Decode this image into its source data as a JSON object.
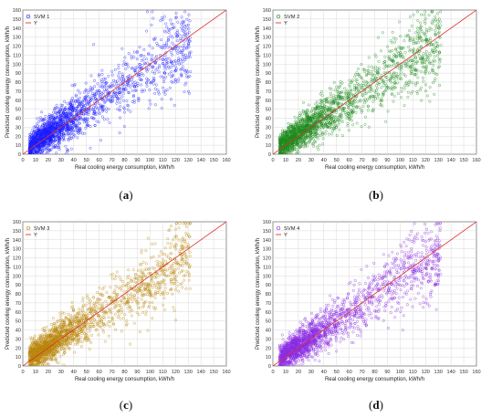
{
  "chart_data": [
    {
      "type": "scatter",
      "panel": "a",
      "caption_letter": "a",
      "xlabel": "Real cooling energy consumption, kWh/h",
      "ylabel": "Predicted cooling energy consumption, kWh/h",
      "xlim": [
        0,
        160
      ],
      "ylim": [
        0,
        160
      ],
      "xticks": [
        "0",
        "10",
        "20",
        "30",
        "40",
        "50",
        "60",
        "70",
        "80",
        "90",
        "100",
        "110",
        "120",
        "130",
        "140",
        "150",
        "160"
      ],
      "yticks": [
        "0",
        "10",
        "20",
        "30",
        "40",
        "50",
        "60",
        "70",
        "80",
        "90",
        "100",
        "110",
        "120",
        "130",
        "140",
        "150",
        "160"
      ],
      "grid": true,
      "legend_position": "top-left",
      "series": [
        {
          "name": "SVM 1",
          "kind": "scatter",
          "color": "#1a1aff",
          "n_points": 2000,
          "spread": 0.32
        },
        {
          "name": "Y",
          "kind": "line",
          "color": "#e03030",
          "x": [
            0,
            160
          ],
          "y": [
            0,
            160
          ]
        }
      ]
    },
    {
      "type": "scatter",
      "panel": "b",
      "caption_letter": "b",
      "xlabel": "Real cooling energy consumption, kWh/h",
      "ylabel": "Predicted cooling energy consumption, kWh/h",
      "xlim": [
        0,
        160
      ],
      "ylim": [
        0,
        160
      ],
      "xticks": [
        "0",
        "10",
        "20",
        "30",
        "40",
        "50",
        "60",
        "70",
        "80",
        "90",
        "100",
        "110",
        "120",
        "130",
        "140",
        "150",
        "160"
      ],
      "yticks": [
        "0",
        "10",
        "20",
        "30",
        "40",
        "50",
        "60",
        "70",
        "80",
        "90",
        "100",
        "110",
        "120",
        "130",
        "140",
        "150",
        "160"
      ],
      "grid": true,
      "legend_position": "top-left",
      "series": [
        {
          "name": "SVM 2",
          "kind": "scatter",
          "color": "#1c8a1c",
          "n_points": 2000,
          "spread": 0.3
        },
        {
          "name": "Y",
          "kind": "line",
          "color": "#e03030",
          "x": [
            0,
            160
          ],
          "y": [
            0,
            160
          ]
        }
      ]
    },
    {
      "type": "scatter",
      "panel": "c",
      "caption_letter": "c",
      "xlabel": "Real cooling energy consumption, kWh/h",
      "ylabel": "Predicted cooling energy consumption, kWh/h",
      "xlim": [
        0,
        160
      ],
      "ylim": [
        0,
        160
      ],
      "xticks": [
        "0",
        "10",
        "20",
        "30",
        "40",
        "50",
        "60",
        "70",
        "80",
        "90",
        "100",
        "110",
        "120",
        "130",
        "140",
        "150",
        "160"
      ],
      "yticks": [
        "0",
        "10",
        "20",
        "30",
        "40",
        "50",
        "60",
        "70",
        "80",
        "90",
        "100",
        "110",
        "120",
        "130",
        "140",
        "150",
        "160"
      ],
      "grid": true,
      "legend_position": "top-left",
      "series": [
        {
          "name": "SVM 3",
          "kind": "scatter",
          "color": "#b8860b",
          "n_points": 2000,
          "spread": 0.28
        },
        {
          "name": "Y",
          "kind": "line",
          "color": "#e03030",
          "x": [
            0,
            160
          ],
          "y": [
            0,
            160
          ]
        }
      ]
    },
    {
      "type": "scatter",
      "panel": "d",
      "caption_letter": "d",
      "xlabel": "Real cooling energy consumption, kWh/h",
      "ylabel": "Predicted cooling energy consumption, kWh/h",
      "xlim": [
        0,
        160
      ],
      "ylim": [
        0,
        160
      ],
      "xticks": [
        "0",
        "10",
        "20",
        "30",
        "40",
        "50",
        "60",
        "70",
        "80",
        "90",
        "100",
        "110",
        "120",
        "130",
        "140",
        "150",
        "160"
      ],
      "yticks": [
        "0",
        "10",
        "20",
        "30",
        "40",
        "50",
        "60",
        "70",
        "80",
        "90",
        "100",
        "110",
        "120",
        "130",
        "140",
        "150",
        "160"
      ],
      "grid": true,
      "legend_position": "top-left",
      "series": [
        {
          "name": "SVM 4",
          "kind": "scatter",
          "color": "#8a2be2",
          "n_points": 2000,
          "spread": 0.28
        },
        {
          "name": "Y",
          "kind": "line",
          "color": "#e03030",
          "x": [
            0,
            160
          ],
          "y": [
            0,
            160
          ]
        }
      ]
    }
  ]
}
